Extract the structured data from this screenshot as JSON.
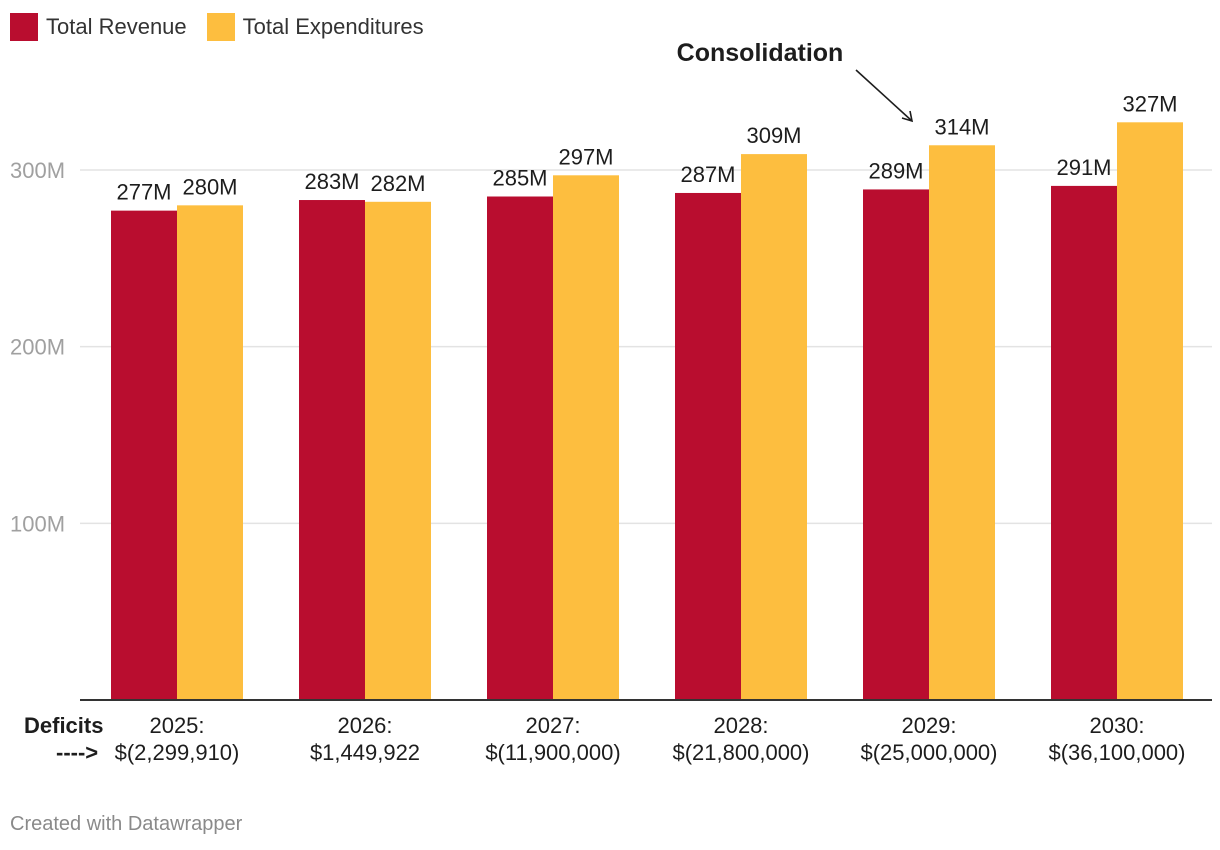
{
  "legend": {
    "items": [
      {
        "label": "Total Revenue",
        "color": "#b90d2f"
      },
      {
        "label": "Total Expenditures",
        "color": "#fdbe3f"
      }
    ]
  },
  "deficits": {
    "label": "Deficits",
    "arrow": "---->"
  },
  "annotation": {
    "text": "Consolidation"
  },
  "credit": "Created with Datawrapper",
  "chart_data": {
    "type": "bar",
    "title": "",
    "xlabel": "",
    "ylabel": "",
    "ylim": [
      0,
      300000000
    ],
    "grid": true,
    "legend_position": "top-left",
    "categories": [
      [
        "2025:",
        "$(2,299,910)"
      ],
      [
        "2026:",
        "$1,449,922"
      ],
      [
        "2027:",
        "$(11,900,000)"
      ],
      [
        "2028:",
        "$(21,800,000)"
      ],
      [
        "2029:",
        "$(25,000,000)"
      ],
      [
        "2030:",
        "$(36,100,000)"
      ]
    ],
    "y_ticks": [
      {
        "value": 100000000,
        "label": "100M"
      },
      {
        "value": 200000000,
        "label": "200M"
      },
      {
        "value": 300000000,
        "label": "300M"
      }
    ],
    "series": [
      {
        "name": "Total Revenue",
        "color": "#b90d2f",
        "values": [
          277000000,
          283000000,
          285000000,
          287000000,
          289000000,
          291000000
        ],
        "labels": [
          "277M",
          "283M",
          "285M",
          "287M",
          "289M",
          "291M"
        ]
      },
      {
        "name": "Total Expenditures",
        "color": "#fdbe3f",
        "values": [
          280000000,
          282000000,
          297000000,
          309000000,
          314000000,
          327000000
        ],
        "labels": [
          "280M",
          "282M",
          "297M",
          "309M",
          "314M",
          "327M"
        ]
      }
    ]
  }
}
